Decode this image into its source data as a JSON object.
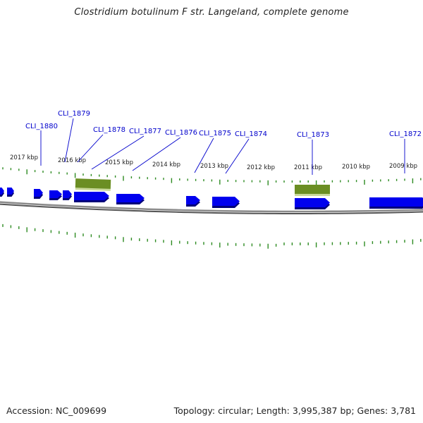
{
  "title": "Clostridium botulinum F str. Langeland, complete genome",
  "footer": {
    "accession": "Accession: NC_009699",
    "topology": "Topology: circular; Length: 3,995,387 bp; Genes: 3,781"
  },
  "colors": {
    "gene": "#0000ee",
    "gene_shadow": "#00007a",
    "rna": "#6b8e23",
    "rna_shadow": "#c8d89a",
    "tick": "#2e8b22",
    "label": "#0000cc",
    "backbone": "#8a8a8a"
  },
  "kbp_labels": [
    "2017 kbp",
    "2016 kbp",
    "2015 kbp",
    "2014 kbp",
    "2013 kbp",
    "2012 kbp",
    "2011 kbp",
    "2010 kbp",
    "2009 kbp"
  ],
  "gene_labels": [
    "CLI_1880",
    "CLI_1879",
    "CLI_1878",
    "CLI_1877",
    "CLI_1876",
    "CLI_1875",
    "CLI_1874",
    "CLI_1873",
    "CLI_1872"
  ]
}
